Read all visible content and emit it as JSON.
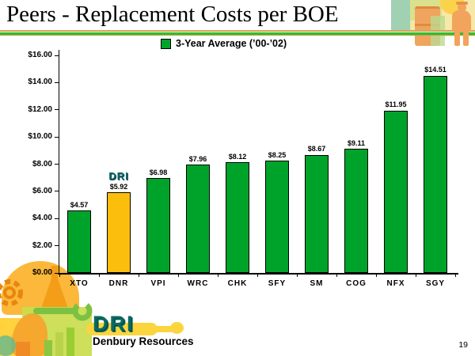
{
  "slide": {
    "title": "Peers - Replacement Costs per BOE",
    "page_number": "19"
  },
  "legend": {
    "label": "3-Year Average (’00-’02)",
    "swatch_color": "#00A32A"
  },
  "chart_data": {
    "type": "bar",
    "title": "3-Year Average (’00-’02)",
    "categories": [
      "XTO",
      "DNR",
      "VPI",
      "WRC",
      "CHK",
      "SFY",
      "SM",
      "COG",
      "NFX",
      "SGY"
    ],
    "values": [
      4.57,
      5.92,
      6.98,
      7.96,
      8.12,
      8.25,
      8.67,
      9.11,
      11.95,
      14.51
    ],
    "value_labels": [
      "$4.57",
      "$5.92",
      "$6.98",
      "$7.96",
      "$8.12",
      "$8.25",
      "$8.67",
      "$9.11",
      "$11.95",
      "$14.51"
    ],
    "y_tick_labels": [
      "$0.00",
      "$2.00",
      "$4.00",
      "$6.00",
      "$8.00",
      "$10.00",
      "$12.00",
      "$14.00",
      "$16.00"
    ],
    "ylim": [
      0,
      16
    ],
    "y_tick_step": 2,
    "xlabel": "",
    "ylabel": "",
    "grid": false,
    "legend_position": "top-center",
    "bar_color": "#00A32A",
    "highlight_index": 1,
    "highlight_color": "#FCBE0D",
    "highlight_marker": "DRI"
  },
  "footer": {
    "logo_text": "DRI",
    "company_name": "Denbury Resources"
  },
  "colors": {
    "brand_teal": "#0B6B60",
    "swoosh_yellow": "#FBD53E",
    "rule_green": "#2FBE2F",
    "rule_gold": "#CFA95B"
  }
}
